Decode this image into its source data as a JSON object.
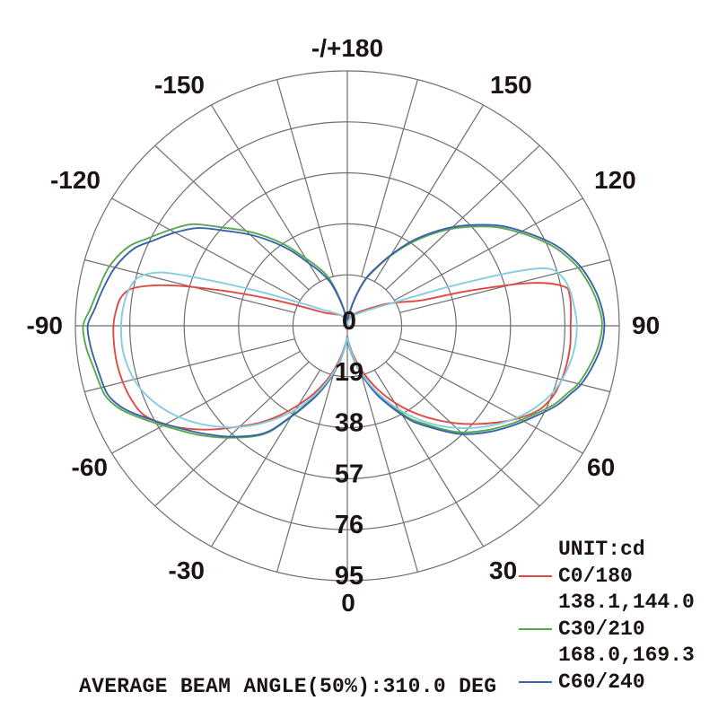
{
  "chart_data": {
    "type": "polar-line",
    "description": "Photometric luminous intensity distribution polar diagram",
    "unit_label": "UNIT:cd",
    "footer": "AVERAGE BEAM ANGLE(50%):310.0 DEG",
    "angle_axis": {
      "zero_position": "bottom",
      "positive_direction": "right",
      "spoke_step_deg": 15,
      "label_step_deg": 30,
      "labels": [
        {
          "angle": -180,
          "label": "-/+180"
        },
        {
          "angle": -150,
          "label": "-150"
        },
        {
          "angle": 150,
          "label": "150"
        },
        {
          "angle": -120,
          "label": "-120"
        },
        {
          "angle": 120,
          "label": "120"
        },
        {
          "angle": -90,
          "label": "-90"
        },
        {
          "angle": 90,
          "label": "90"
        },
        {
          "angle": -60,
          "label": "-60"
        },
        {
          "angle": 60,
          "label": "60"
        },
        {
          "angle": -30,
          "label": "-30"
        },
        {
          "angle": 30,
          "label": "30"
        },
        {
          "angle": 0,
          "label": "0"
        }
      ]
    },
    "radial_axis": {
      "unit": "cd",
      "ticks": [
        "0",
        "19",
        "38",
        "57",
        "76",
        "95"
      ],
      "max": 95,
      "rings": 5
    },
    "legend": [
      {
        "label": "C0/180",
        "values": "138.1,144.0",
        "color": "#e04a42"
      },
      {
        "label": "C30/210",
        "values": "168.0,169.3",
        "color": "#58a94d"
      },
      {
        "label": "C60/240",
        "color": "#3a63ad"
      }
    ],
    "series": [
      {
        "name": "C0/180",
        "color": "#e04a42",
        "points": [
          [
            -180,
            0
          ],
          [
            -170,
            1.5
          ],
          [
            -160,
            3
          ],
          [
            -150,
            4.5
          ],
          [
            -140,
            5.5
          ],
          [
            -130,
            7
          ],
          [
            -122,
            9
          ],
          [
            -117,
            13
          ],
          [
            -113,
            20
          ],
          [
            -110,
            30
          ],
          [
            -107,
            44
          ],
          [
            -104,
            62
          ],
          [
            -101,
            75
          ],
          [
            -98,
            79.5
          ],
          [
            -94,
            81
          ],
          [
            -90,
            81.7
          ],
          [
            -85,
            81.8
          ],
          [
            -80,
            81.7
          ],
          [
            -75,
            81.2
          ],
          [
            -70,
            80.3
          ],
          [
            -65,
            78.5
          ],
          [
            -60,
            73.5
          ],
          [
            -55,
            67
          ],
          [
            -50,
            60
          ],
          [
            -45,
            53
          ],
          [
            -40,
            47
          ],
          [
            -35,
            40.5
          ],
          [
            -30,
            34
          ],
          [
            -25,
            28
          ],
          [
            -20,
            22
          ],
          [
            -15,
            16
          ],
          [
            -10,
            10.5
          ],
          [
            -5,
            6.5
          ],
          [
            0,
            4
          ],
          [
            5,
            6.5
          ],
          [
            10,
            10.5
          ],
          [
            15,
            15.5
          ],
          [
            20,
            21
          ],
          [
            25,
            27
          ],
          [
            30,
            33
          ],
          [
            35,
            39
          ],
          [
            40,
            45
          ],
          [
            45,
            51
          ],
          [
            50,
            57
          ],
          [
            55,
            63
          ],
          [
            60,
            69
          ],
          [
            65,
            74
          ],
          [
            70,
            76.5
          ],
          [
            75,
            77.5
          ],
          [
            80,
            78
          ],
          [
            85,
            78.2
          ],
          [
            90,
            78
          ],
          [
            94,
            78.3
          ],
          [
            98,
            78.5
          ],
          [
            101,
            77
          ],
          [
            104,
            66
          ],
          [
            107,
            45
          ],
          [
            110,
            28
          ],
          [
            115,
            21
          ],
          [
            122,
            15
          ],
          [
            130,
            10
          ],
          [
            140,
            7
          ],
          [
            150,
            5
          ],
          [
            160,
            3.5
          ],
          [
            170,
            1.5
          ],
          [
            180,
            0
          ]
        ]
      },
      {
        "name": "C30/210",
        "color": "#58a94d",
        "points": [
          [
            -180,
            0
          ],
          [
            -172,
            4
          ],
          [
            -165,
            11
          ],
          [
            -160,
            19
          ],
          [
            -155,
            24
          ],
          [
            -150,
            29
          ],
          [
            -145,
            36
          ],
          [
            -140,
            43
          ],
          [
            -135,
            50
          ],
          [
            -130,
            57
          ],
          [
            -125,
            66
          ],
          [
            -120,
            71.5
          ],
          [
            -115,
            77
          ],
          [
            -111,
            82
          ],
          [
            -105,
            86
          ],
          [
            -99,
            88
          ],
          [
            -94,
            90
          ],
          [
            -90,
            92.3
          ],
          [
            -85,
            91.6
          ],
          [
            -80,
            90
          ],
          [
            -75,
            89
          ],
          [
            -72,
            88
          ],
          [
            -68,
            84.5
          ],
          [
            -63,
            78
          ],
          [
            -57,
            71
          ],
          [
            -51,
            65
          ],
          [
            -44,
            58
          ],
          [
            -36,
            50
          ],
          [
            -31,
            41
          ],
          [
            -23,
            29
          ],
          [
            -17,
            21
          ],
          [
            -11,
            13.5
          ],
          [
            -5,
            7.5
          ],
          [
            0,
            5
          ],
          [
            5,
            7.5
          ],
          [
            11,
            13
          ],
          [
            17,
            20
          ],
          [
            23,
            28
          ],
          [
            31,
            39
          ],
          [
            36,
            45
          ],
          [
            44,
            55
          ],
          [
            51,
            62
          ],
          [
            57,
            67.5
          ],
          [
            63,
            73
          ],
          [
            68,
            78
          ],
          [
            72,
            81
          ],
          [
            75,
            83.5
          ],
          [
            80,
            86
          ],
          [
            85,
            88
          ],
          [
            90,
            89
          ],
          [
            94,
            88.3
          ],
          [
            99,
            86.5
          ],
          [
            105,
            83.5
          ],
          [
            111,
            79
          ],
          [
            115,
            75
          ],
          [
            120,
            69.5
          ],
          [
            125,
            64
          ],
          [
            130,
            57.5
          ],
          [
            135,
            51
          ],
          [
            140,
            44
          ],
          [
            145,
            37
          ],
          [
            150,
            30
          ],
          [
            155,
            23.5
          ],
          [
            160,
            18
          ],
          [
            165,
            11
          ],
          [
            172,
            4
          ],
          [
            180,
            0
          ]
        ]
      },
      {
        "name": "C60/240",
        "color": "#3a63ad",
        "points": [
          [
            -180,
            0
          ],
          [
            -172,
            3.5
          ],
          [
            -165,
            10
          ],
          [
            -160,
            17
          ],
          [
            -155,
            22
          ],
          [
            -150,
            27
          ],
          [
            -145,
            34
          ],
          [
            -140,
            41
          ],
          [
            -135,
            48
          ],
          [
            -130,
            55
          ],
          [
            -125,
            63.5
          ],
          [
            -120,
            69.5
          ],
          [
            -115,
            75
          ],
          [
            -111,
            80
          ],
          [
            -105,
            84
          ],
          [
            -99,
            86.5
          ],
          [
            -94,
            88.5
          ],
          [
            -90,
            90.7
          ],
          [
            -85,
            90
          ],
          [
            -80,
            88.8
          ],
          [
            -75,
            88
          ],
          [
            -72,
            87
          ],
          [
            -68,
            83.5
          ],
          [
            -63,
            77
          ],
          [
            -57,
            70
          ],
          [
            -51,
            64
          ],
          [
            -44,
            57.5
          ],
          [
            -36,
            49.5
          ],
          [
            -31,
            40.5
          ],
          [
            -23,
            28.5
          ],
          [
            -17,
            20.5
          ],
          [
            -11,
            13
          ],
          [
            -5,
            7
          ],
          [
            0,
            4.8
          ],
          [
            5,
            8
          ],
          [
            11,
            13.5
          ],
          [
            17,
            21
          ],
          [
            23,
            29
          ],
          [
            31,
            40
          ],
          [
            36,
            46
          ],
          [
            44,
            56
          ],
          [
            51,
            63
          ],
          [
            57,
            68.5
          ],
          [
            63,
            74
          ],
          [
            68,
            79
          ],
          [
            72,
            82
          ],
          [
            75,
            84.5
          ],
          [
            80,
            87
          ],
          [
            85,
            89
          ],
          [
            90,
            89.8
          ],
          [
            94,
            89.2
          ],
          [
            99,
            87.5
          ],
          [
            105,
            84.5
          ],
          [
            111,
            80
          ],
          [
            115,
            76
          ],
          [
            120,
            70.5
          ],
          [
            125,
            65
          ],
          [
            130,
            58.5
          ],
          [
            135,
            52
          ],
          [
            140,
            45
          ],
          [
            145,
            38
          ],
          [
            150,
            30.5
          ],
          [
            155,
            24
          ],
          [
            160,
            18.5
          ],
          [
            165,
            11.5
          ],
          [
            172,
            4.5
          ],
          [
            180,
            0
          ]
        ]
      },
      {
        "name": "unlabeled-cyan",
        "color": "#85cde4",
        "points": [
          [
            -180,
            0
          ],
          [
            -170,
            1.5
          ],
          [
            -160,
            3
          ],
          [
            -150,
            4.5
          ],
          [
            -140,
            6
          ],
          [
            -131,
            8
          ],
          [
            -124,
            11
          ],
          [
            -119,
            16
          ],
          [
            -115,
            24
          ],
          [
            -112,
            36
          ],
          [
            -109,
            54
          ],
          [
            -107,
            68
          ],
          [
            -104,
            75
          ],
          [
            -100,
            77.5
          ],
          [
            -95,
            78.6
          ],
          [
            -90,
            79
          ],
          [
            -84,
            79
          ],
          [
            -78,
            78
          ],
          [
            -72,
            76
          ],
          [
            -66,
            72.5
          ],
          [
            -60,
            68
          ],
          [
            -54,
            62.5
          ],
          [
            -48,
            56.5
          ],
          [
            -42,
            50
          ],
          [
            -36,
            43
          ],
          [
            -30,
            36
          ],
          [
            -24,
            28.5
          ],
          [
            -18,
            21
          ],
          [
            -12,
            14
          ],
          [
            -6,
            8
          ],
          [
            0,
            4.5
          ],
          [
            6,
            8
          ],
          [
            12,
            14
          ],
          [
            18,
            21
          ],
          [
            24,
            28.5
          ],
          [
            30,
            36
          ],
          [
            36,
            43.5
          ],
          [
            42,
            50.5
          ],
          [
            48,
            57
          ],
          [
            54,
            63
          ],
          [
            60,
            68.5
          ],
          [
            66,
            73
          ],
          [
            72,
            76.5
          ],
          [
            78,
            78.5
          ],
          [
            84,
            79.8
          ],
          [
            90,
            80.2
          ],
          [
            95,
            79.6
          ],
          [
            100,
            78.8
          ],
          [
            104,
            77
          ],
          [
            107,
            73
          ],
          [
            109,
            62
          ],
          [
            112,
            40
          ],
          [
            115,
            26
          ],
          [
            119,
            17
          ],
          [
            124,
            12
          ],
          [
            131,
            8.5
          ],
          [
            140,
            6
          ],
          [
            150,
            4.5
          ],
          [
            160,
            3
          ],
          [
            170,
            1.5
          ],
          [
            180,
            0
          ]
        ]
      }
    ],
    "colors": {
      "grid": "#6e6e6e",
      "text": "#1c1412"
    }
  }
}
